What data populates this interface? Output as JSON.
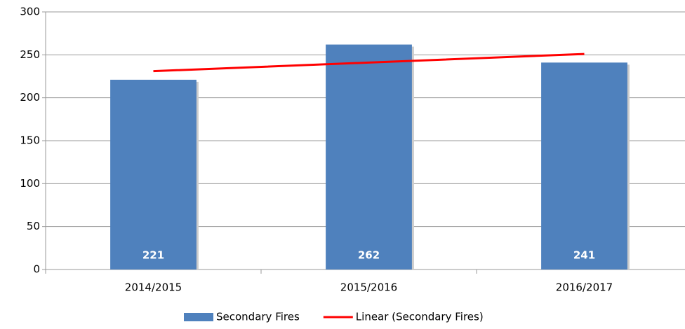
{
  "chart_data": {
    "type": "bar",
    "categories": [
      "2014/2015",
      "2015/2016",
      "2016/2017"
    ],
    "series": [
      {
        "name": "Secondary Fires",
        "type": "bar",
        "color": "#4f81bd",
        "values": [
          221,
          262,
          241
        ]
      },
      {
        "name": "Linear (Secondary Fires)",
        "type": "line",
        "color": "#ff0000",
        "values": [
          231,
          241,
          251
        ]
      }
    ],
    "ylim": [
      0,
      300
    ],
    "yticks": [
      0,
      50,
      100,
      150,
      200,
      250,
      300
    ],
    "grid": true,
    "legend": "bottom"
  }
}
